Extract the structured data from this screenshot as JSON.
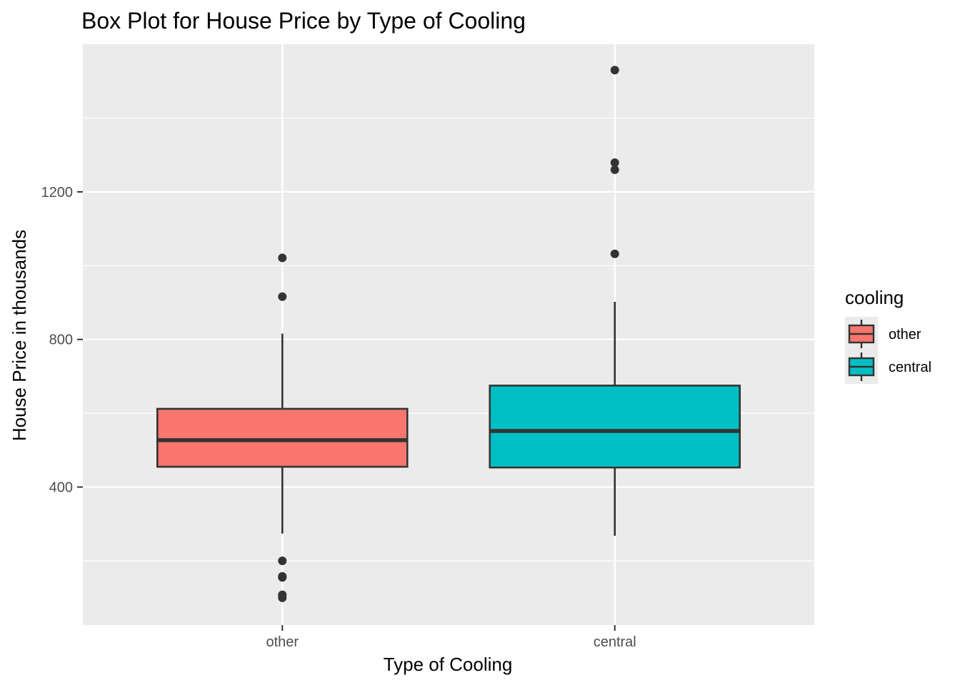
{
  "chart_data": {
    "type": "box",
    "title": "Box Plot for House Price by Type of Cooling",
    "xlabel": "Type of Cooling",
    "ylabel": "House Price in thousands",
    "categories": [
      "other",
      "central"
    ],
    "ylim": [
      26,
      1600
    ],
    "yticks": [
      400,
      800,
      1200
    ],
    "grid": true,
    "legend": {
      "title": "cooling",
      "position": "right",
      "entries": [
        "other",
        "central"
      ]
    },
    "colors": {
      "other": "#F8766D",
      "central": "#00BFC4",
      "panel": "#EBEBEB",
      "grid": "#FFFFFF",
      "outline": "#333333"
    },
    "boxes": [
      {
        "category": "other",
        "whisker_low": 274,
        "q1": 455,
        "median": 527,
        "q3": 612,
        "whisker_high": 816,
        "outliers": [
          1021,
          916,
          200,
          158,
          155,
          108,
          100
        ]
      },
      {
        "category": "central",
        "whisker_low": 268,
        "q1": 453,
        "median": 552,
        "q3": 675,
        "whisker_high": 902,
        "outliers": [
          1530,
          1279,
          1260,
          1032
        ]
      }
    ]
  }
}
